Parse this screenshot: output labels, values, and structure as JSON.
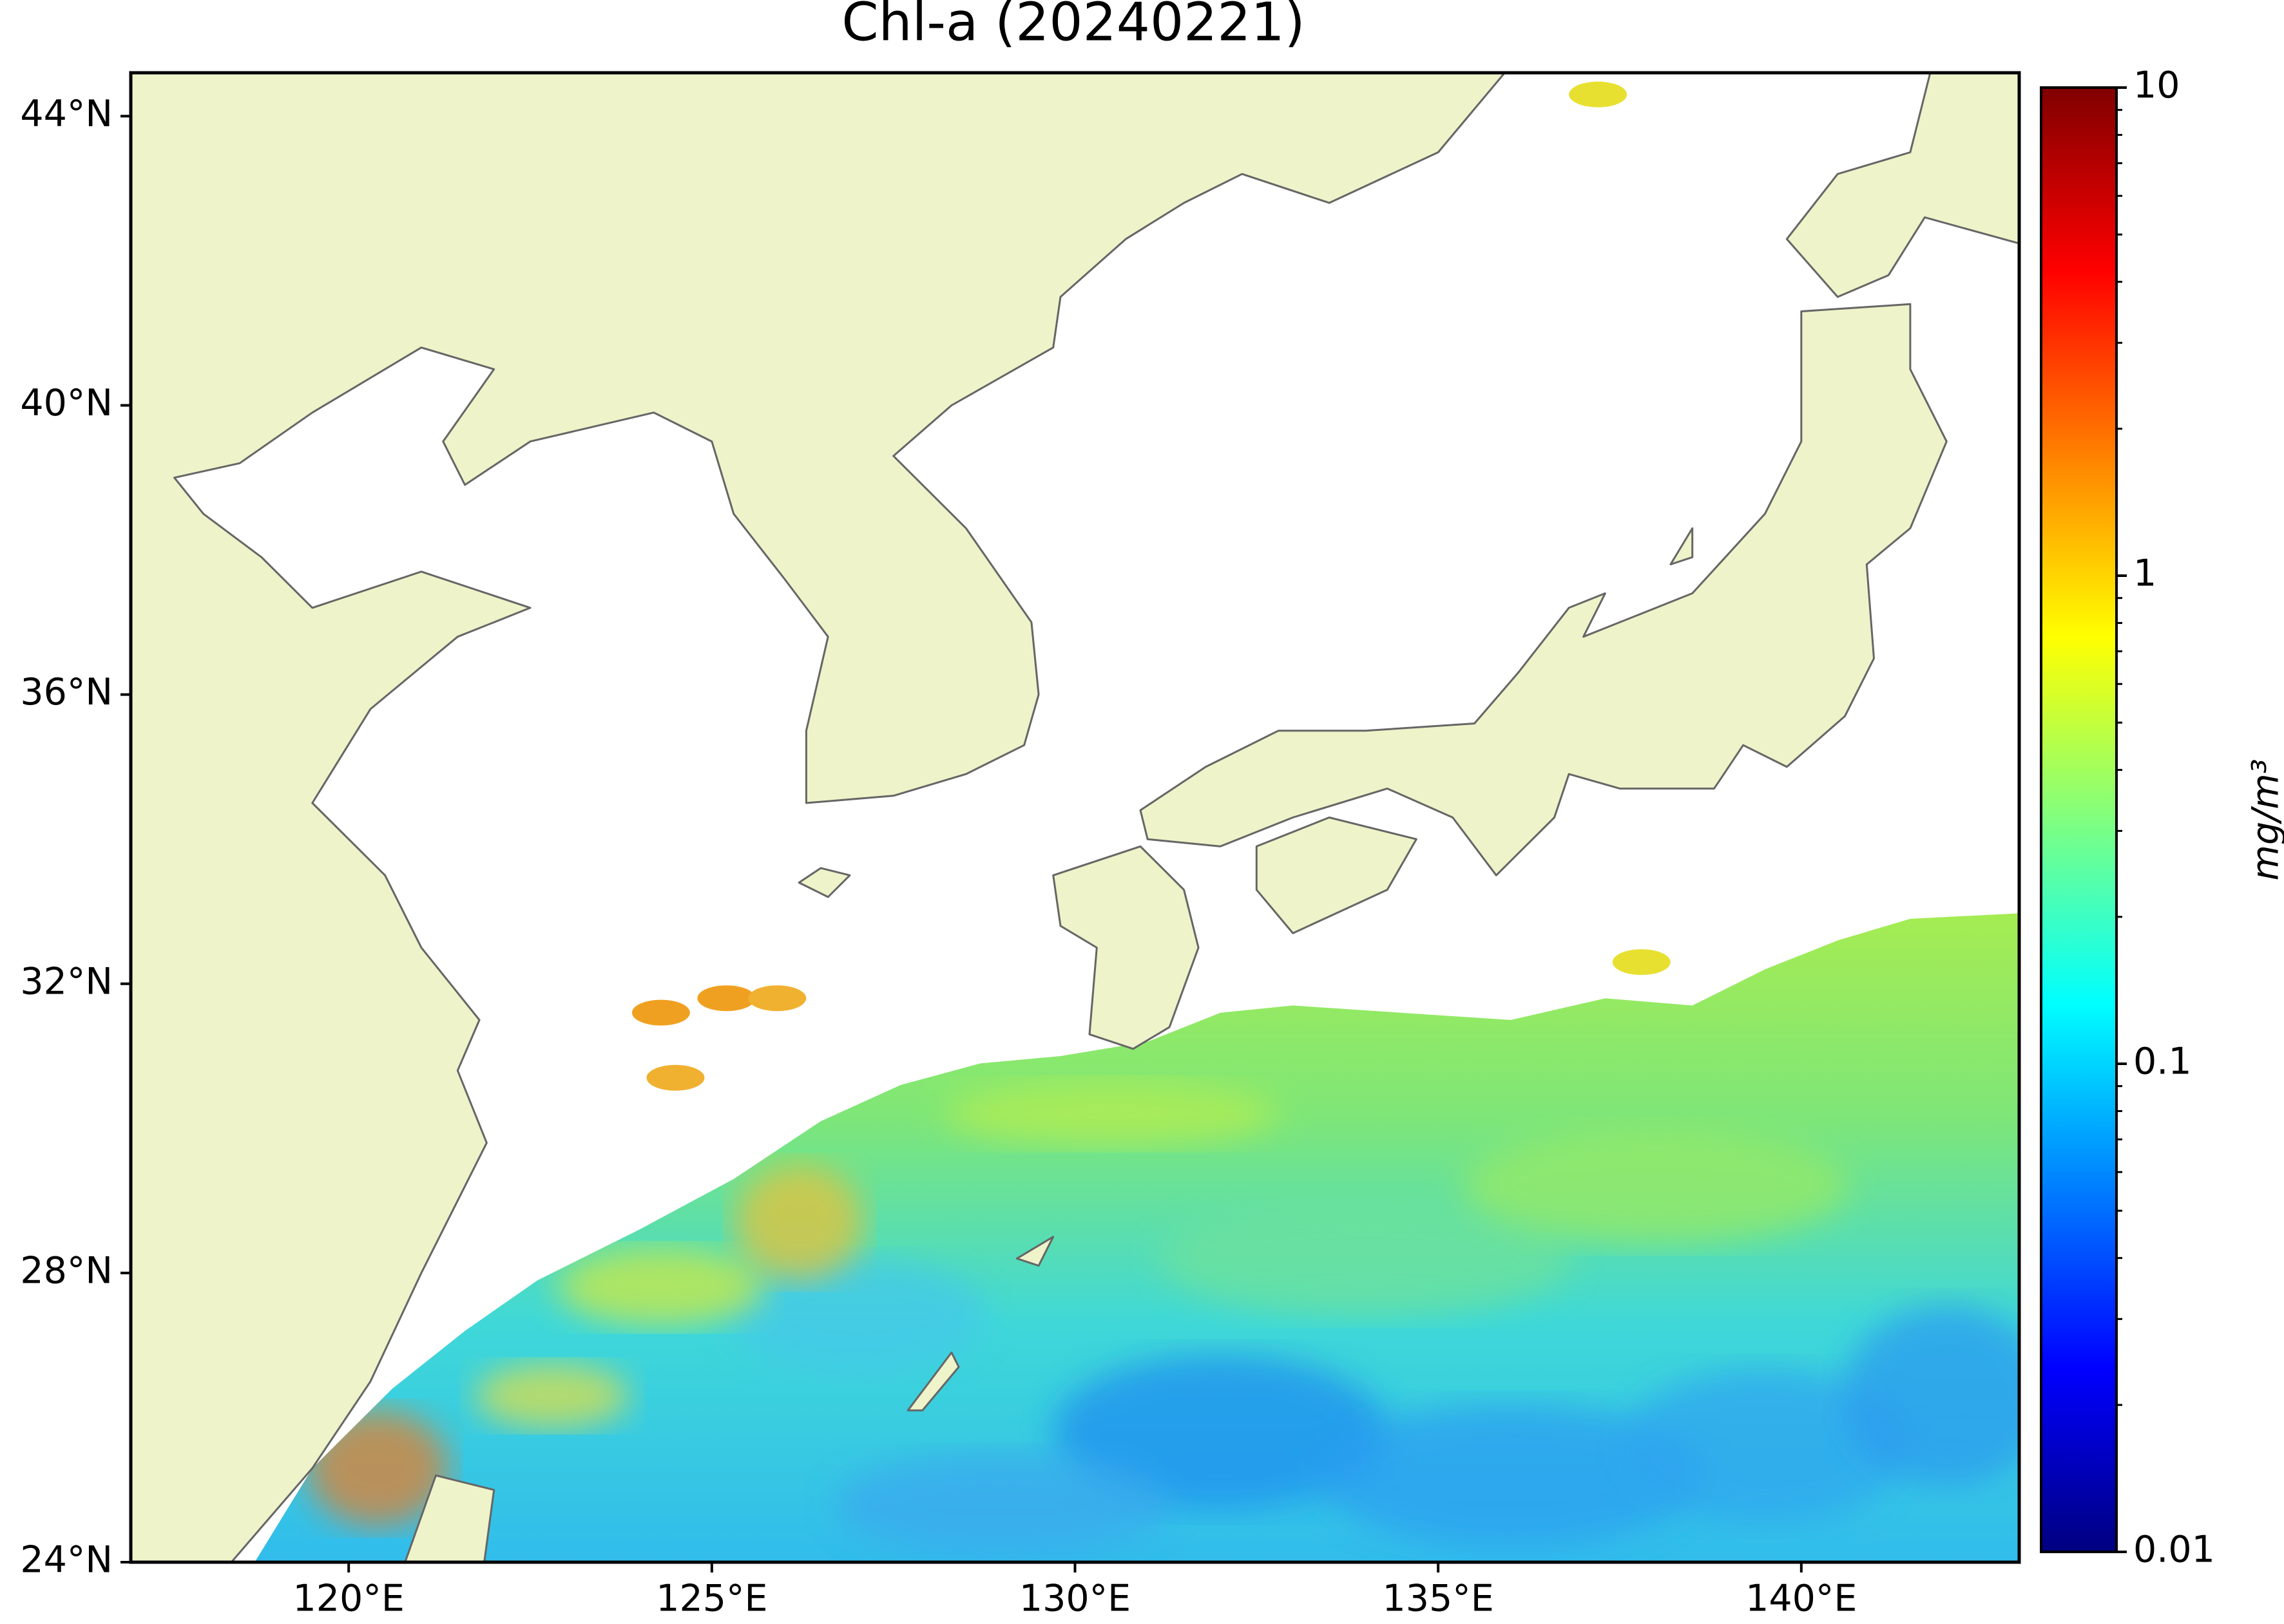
{
  "title": "Chl-a (20240221)",
  "map": {
    "xlim": [
      117,
      143
    ],
    "ylim": [
      24,
      44.6
    ],
    "xticks": [
      {
        "value": 120,
        "label": "120°E"
      },
      {
        "value": 125,
        "label": "125°E"
      },
      {
        "value": 130,
        "label": "130°E"
      },
      {
        "value": 135,
        "label": "135°E"
      },
      {
        "value": 140,
        "label": "140°E"
      }
    ],
    "yticks": [
      {
        "value": 24,
        "label": "24°N"
      },
      {
        "value": 28,
        "label": "28°N"
      },
      {
        "value": 32,
        "label": "32°N"
      },
      {
        "value": 36,
        "label": "36°N"
      },
      {
        "value": 40,
        "label": "40°N"
      },
      {
        "value": 44,
        "label": "44°N"
      }
    ]
  },
  "colorbar": {
    "label": "mg/m³",
    "clim": [
      0.01,
      10
    ],
    "log": true,
    "colormap": "jet",
    "ticks": [
      0.01,
      0.1,
      1,
      10
    ],
    "minor_ticks": [
      0.02,
      0.03,
      0.04,
      0.05,
      0.06,
      0.07,
      0.08,
      0.09,
      0.2,
      0.3,
      0.4,
      0.5,
      0.6,
      0.7,
      0.8,
      0.9,
      2,
      3,
      4,
      5,
      6,
      7,
      8,
      9
    ]
  }
}
